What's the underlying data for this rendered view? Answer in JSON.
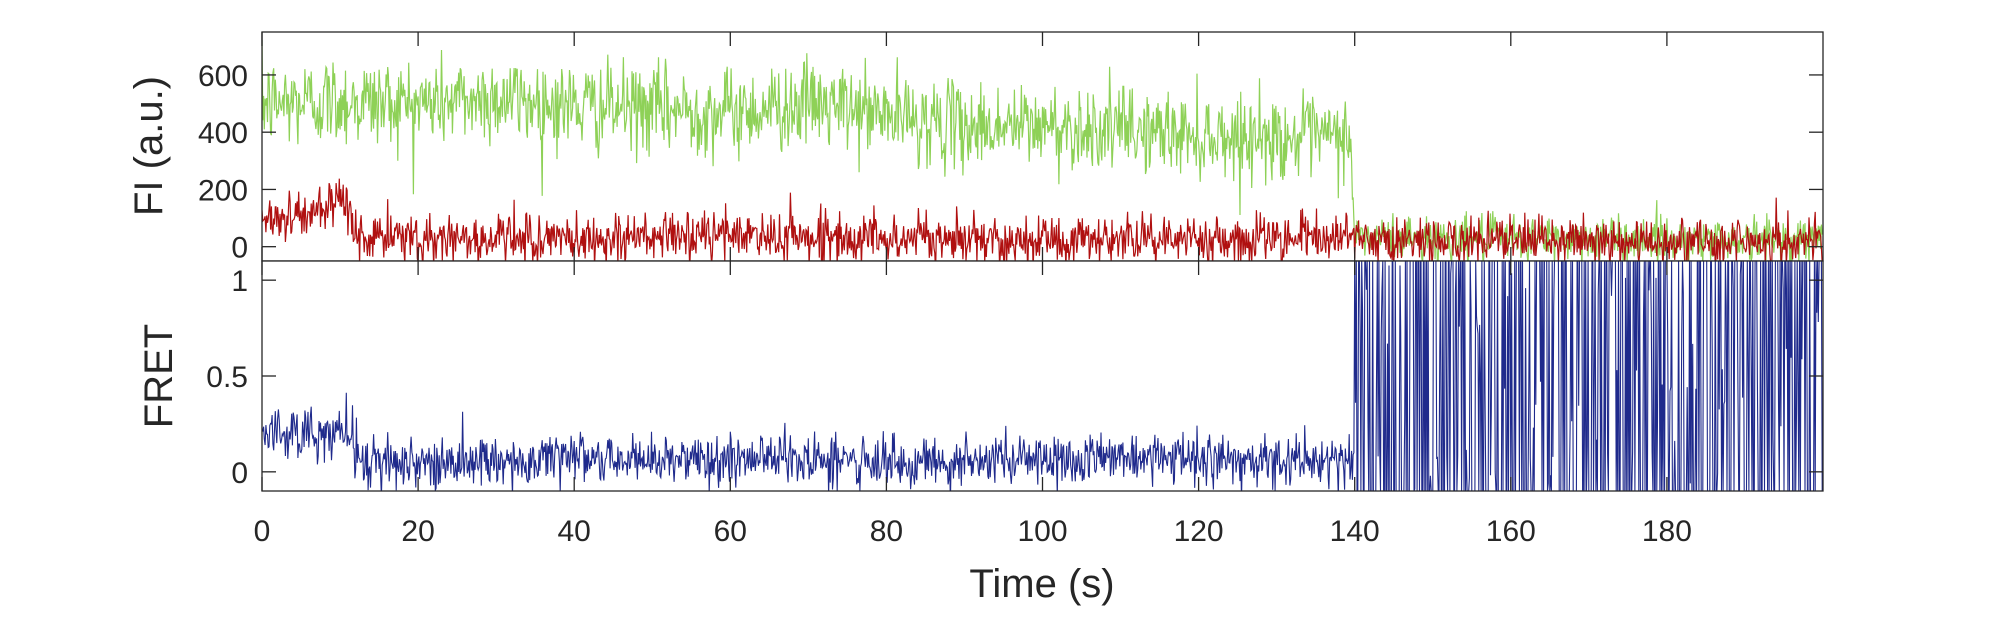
{
  "chart_data": [
    {
      "type": "line",
      "ylabel": "FI (a.u.)",
      "xlim": [
        0,
        200
      ],
      "ylim": [
        -50,
        750
      ],
      "yticks": [
        0,
        200,
        400,
        600
      ],
      "ytick_labels": [
        "0",
        "200",
        "400",
        "600"
      ],
      "grid": false,
      "series": [
        {
          "color": "#8ED157",
          "trace_description": "noisy fluorescence trace",
          "points": [
            [
              0,
              500
            ],
            [
              10,
              510
            ],
            [
              20,
              500
            ],
            [
              30,
              520
            ],
            [
              40,
              490
            ],
            [
              50,
              480
            ],
            [
              60,
              470
            ],
            [
              70,
              500
            ],
            [
              80,
              460
            ],
            [
              90,
              420
            ],
            [
              100,
              420
            ],
            [
              110,
              410
            ],
            [
              120,
              390
            ],
            [
              130,
              380
            ],
            [
              139.5,
              380
            ],
            [
              140,
              30
            ],
            [
              150,
              30
            ],
            [
              160,
              25
            ],
            [
              170,
              30
            ],
            [
              180,
              25
            ],
            [
              200,
              25
            ]
          ],
          "noise_sd": [
            [
              0,
              80
            ],
            [
              139.5,
              70
            ],
            [
              140,
              40
            ],
            [
              200,
              40
            ]
          ]
        },
        {
          "color": "#B01010",
          "trace_description": "noisy fluorescence trace",
          "points": [
            [
              0,
              100
            ],
            [
              8,
              120
            ],
            [
              11,
              140
            ],
            [
              12.5,
              30
            ],
            [
              20,
              30
            ],
            [
              40,
              25
            ],
            [
              60,
              40
            ],
            [
              80,
              30
            ],
            [
              100,
              25
            ],
            [
              120,
              30
            ],
            [
              139.5,
              35
            ],
            [
              140,
              20
            ],
            [
              160,
              20
            ],
            [
              180,
              20
            ],
            [
              200,
              20
            ]
          ],
          "noise_sd": [
            [
              0,
              45
            ],
            [
              200,
              40
            ]
          ]
        }
      ]
    },
    {
      "type": "line",
      "xlabel": "Time (s)",
      "ylabel": "FRET",
      "xlim": [
        0,
        200
      ],
      "ylim": [
        -0.1,
        1.1
      ],
      "yticks": [
        0,
        0.5,
        1
      ],
      "ytick_labels": [
        "0",
        "0.5",
        "1"
      ],
      "xticks": [
        0,
        20,
        40,
        60,
        80,
        100,
        120,
        140,
        160,
        180
      ],
      "xtick_labels": [
        "0",
        "20",
        "40",
        "60",
        "80",
        "100",
        "120",
        "140",
        "160",
        "180"
      ],
      "grid": false,
      "series": [
        {
          "color": "#1F2A8C",
          "trace_description": "FRET efficiency trace",
          "points": [
            [
              0,
              0.2
            ],
            [
              11,
              0.2
            ],
            [
              12.5,
              0.05
            ],
            [
              20,
              0.05
            ],
            [
              40,
              0.06
            ],
            [
              60,
              0.07
            ],
            [
              80,
              0.06
            ],
            [
              100,
              0.05
            ],
            [
              110,
              0.09
            ],
            [
              120,
              0.07
            ],
            [
              139.5,
              0.06
            ]
          ],
          "noise_sd": [
            [
              0,
              0.07
            ],
            [
              139.5,
              0.07
            ]
          ],
          "after_x": 140,
          "after_behavior": "rapid random switching between -0.1 and 1.1"
        }
      ]
    }
  ]
}
